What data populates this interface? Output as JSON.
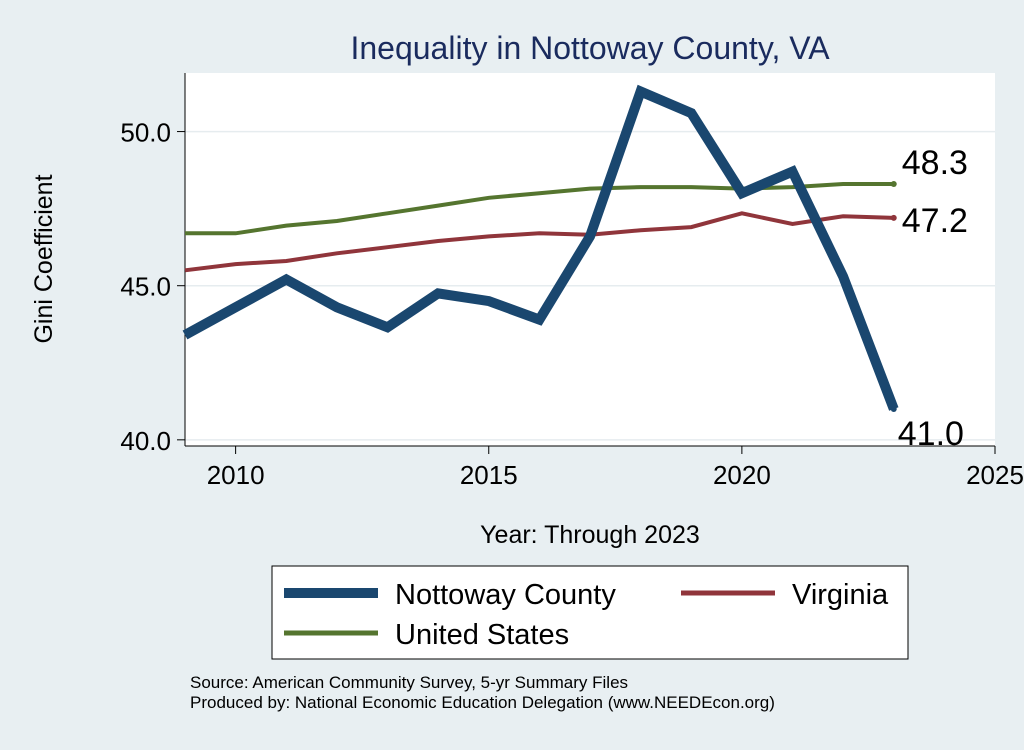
{
  "chart_data": {
    "type": "line",
    "title": "Inequality in Nottoway County, VA",
    "xlabel": "Year: Through 2023",
    "ylabel": "Gini Coefficient",
    "xlim": [
      2009,
      2025
    ],
    "ylim": [
      39.8,
      51.9
    ],
    "x_ticks": [
      2010,
      2015,
      2020,
      2025
    ],
    "y_ticks": [
      40.0,
      45.0,
      50.0
    ],
    "y_tick_labels": [
      "40.0",
      "45.0",
      "50.0"
    ],
    "grid": true,
    "legend_position": "bottom",
    "x": [
      2009,
      2010,
      2011,
      2012,
      2013,
      2014,
      2015,
      2016,
      2017,
      2018,
      2019,
      2020,
      2021,
      2022,
      2023
    ],
    "series": [
      {
        "name": "Nottoway County",
        "color": "#1a476f",
        "values": [
          43.4,
          44.3,
          45.2,
          44.3,
          43.65,
          44.75,
          44.5,
          43.9,
          46.6,
          51.3,
          50.6,
          48.0,
          48.7,
          45.3,
          41.0
        ],
        "end_label": "41.0"
      },
      {
        "name": "Virginia",
        "color": "#90353b",
        "values": [
          45.5,
          45.7,
          45.8,
          46.05,
          46.25,
          46.45,
          46.6,
          46.7,
          46.65,
          46.8,
          46.9,
          47.35,
          47.0,
          47.25,
          47.2
        ],
        "end_label": "47.2"
      },
      {
        "name": "United States",
        "color": "#55752f",
        "values": [
          46.7,
          46.7,
          46.95,
          47.1,
          47.35,
          47.6,
          47.85,
          48.0,
          48.15,
          48.2,
          48.2,
          48.15,
          48.2,
          48.3,
          48.3
        ],
        "end_label": "48.3"
      }
    ],
    "source_note": "Source: American Community Survey, 5-yr Summary Files",
    "producer_note": "Produced by: National Economic Education Delegation (www.NEEDEcon.org)"
  }
}
